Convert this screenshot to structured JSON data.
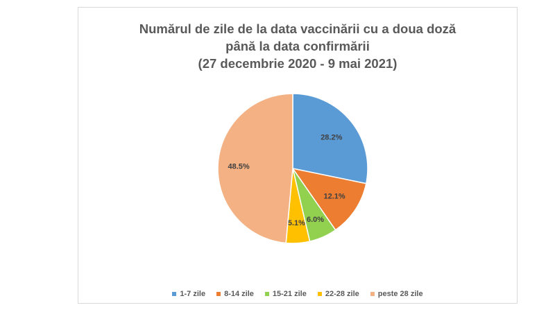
{
  "chart_data": {
    "type": "pie",
    "title_lines": [
      "Numărul de zile de la data vaccinării cu a doua doză",
      "până la data confirmării",
      "(27 decembrie 2020 - 9 mai 2021)"
    ],
    "categories": [
      "1-7 zile",
      "8-14 zile",
      "15-21 zile",
      "22-28 zile",
      "peste 28 zile"
    ],
    "values": [
      28.2,
      12.1,
      6.0,
      5.1,
      48.5
    ],
    "data_labels": [
      "28.2%",
      "12.1%",
      "6.0%",
      "5.1%",
      "48.5%"
    ],
    "colors": [
      "#5b9bd5",
      "#ed7d31",
      "#92d050",
      "#ffc000",
      "#f4b183"
    ],
    "legend_position": "bottom",
    "start_angle": "top, clockwise"
  }
}
